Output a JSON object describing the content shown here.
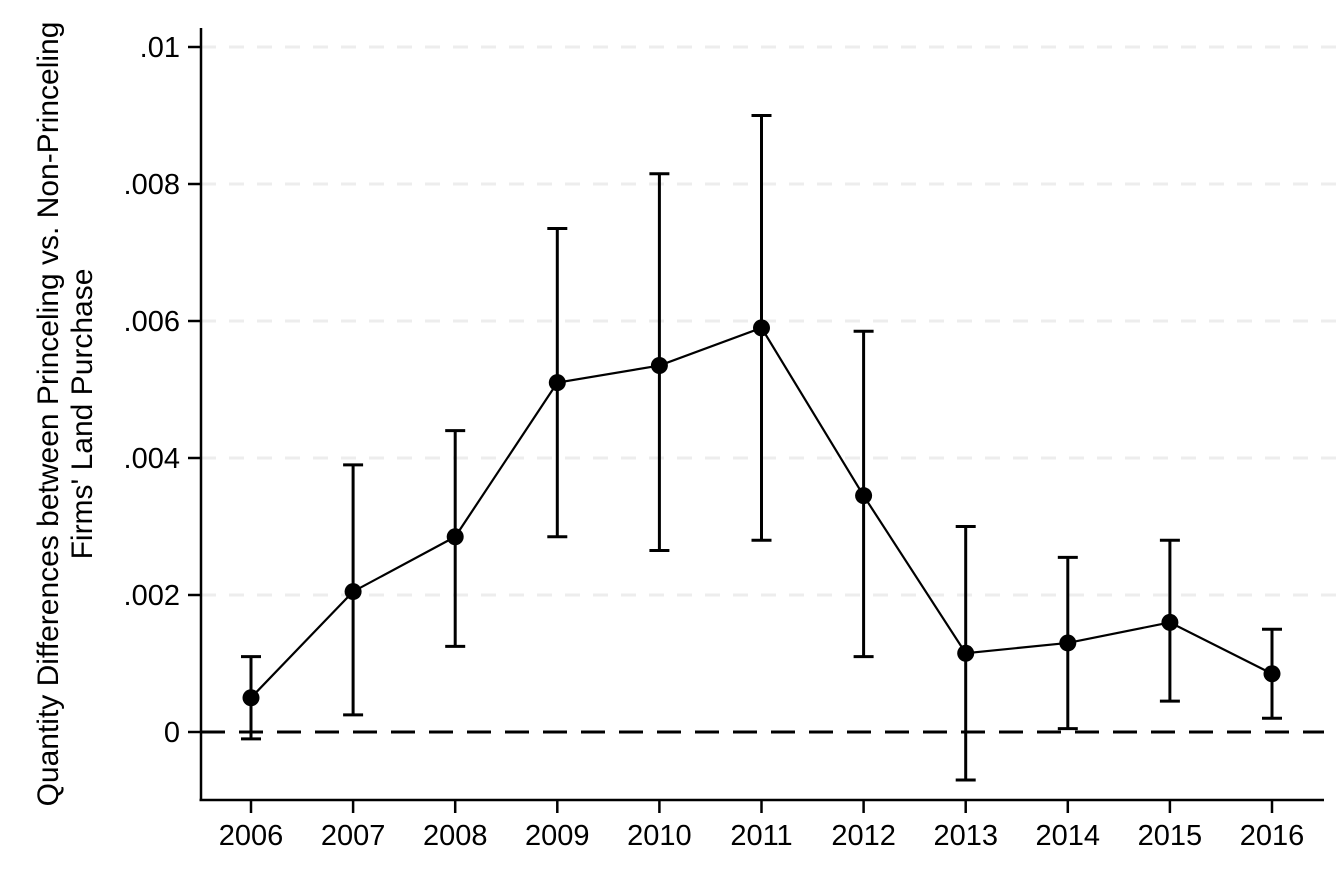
{
  "chart_data": {
    "type": "line",
    "subtype": "point-estimates-with-confidence-intervals",
    "title": "",
    "xlabel": "",
    "ylabel_line1": "Quantity Differences between Princeling vs. Non-Princeling",
    "ylabel_line2": "Firms' Land Purchase",
    "x": [
      2006,
      2007,
      2008,
      2009,
      2010,
      2011,
      2012,
      2013,
      2014,
      2015,
      2016
    ],
    "xtick_labels": [
      "2006",
      "2007",
      "2008",
      "2009",
      "2010",
      "2011",
      "2012",
      "2013",
      "2014",
      "2015",
      "2016"
    ],
    "series": [
      {
        "name": "estimate",
        "values": [
          0.0005,
          0.00205,
          0.00285,
          0.0051,
          0.00535,
          0.0059,
          0.00345,
          0.00115,
          0.0013,
          0.0016,
          0.00085
        ],
        "ci_high": [
          0.0011,
          0.0039,
          0.0044,
          0.00735,
          0.00815,
          0.009,
          0.00585,
          0.003,
          0.00255,
          0.0028,
          0.0015
        ],
        "ci_low": [
          -0.0001,
          0.00025,
          0.00125,
          0.00285,
          0.00265,
          0.0028,
          0.0011,
          -0.0007,
          5e-05,
          0.00045,
          0.0002
        ]
      }
    ],
    "yticks": [
      0,
      0.002,
      0.004,
      0.006,
      0.008,
      0.01
    ],
    "ytick_labels": [
      "0",
      ".002",
      ".004",
      ".006",
      ".008",
      ".01"
    ],
    "ylim": [
      -0.001,
      0.0103
    ],
    "reference_line_y": 0,
    "grid": "horizontal-dashed",
    "legend": "none",
    "colors": {
      "marker": "#000000",
      "line": "#000000",
      "error_bar": "#000000",
      "grid": "#ededed",
      "reference_line": "#000000",
      "axis": "#000000",
      "background": "#ffffff"
    }
  }
}
